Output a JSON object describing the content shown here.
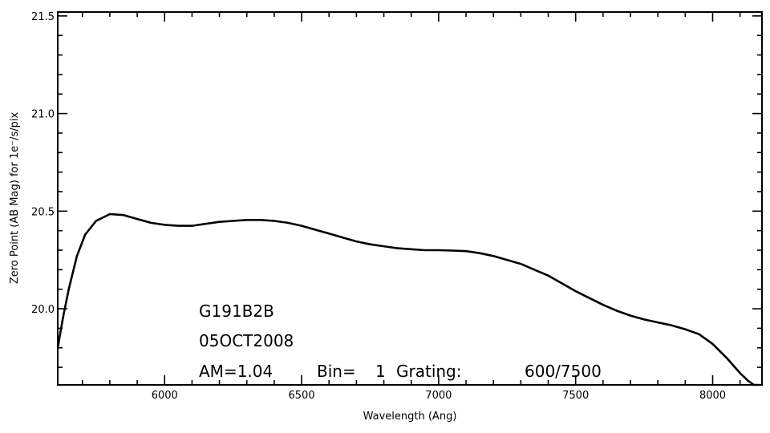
{
  "chart_data": {
    "type": "line",
    "xlabel": "Wavelength (Ang)",
    "ylabel": "Zero Point (AB Mag) for 1e⁻/s/pix",
    "xlim": [
      5610,
      8180
    ],
    "ylim": [
      19.61,
      21.52
    ],
    "x_ticks": [
      6000,
      6500,
      7000,
      7500,
      8000
    ],
    "x_tick_labels": [
      "6000",
      "6500",
      "7000",
      "7500",
      "8000"
    ],
    "y_ticks": [
      20.0,
      20.5,
      21.0,
      21.5
    ],
    "y_tick_labels": [
      "20.0",
      "20.5",
      "21.0",
      "21.5"
    ],
    "grid": false,
    "series": [
      {
        "x": [
          5610,
          5630,
          5650,
          5680,
          5710,
          5750,
          5800,
          5850,
          5900,
          5950,
          6000,
          6050,
          6100,
          6150,
          6200,
          6250,
          6300,
          6350,
          6400,
          6450,
          6500,
          6550,
          6600,
          6650,
          6700,
          6750,
          6800,
          6850,
          6900,
          6950,
          7000,
          7050,
          7100,
          7150,
          7200,
          7250,
          7300,
          7350,
          7400,
          7450,
          7500,
          7550,
          7600,
          7650,
          7700,
          7750,
          7800,
          7850,
          7900,
          7950,
          8000,
          8050,
          8100,
          8130,
          8150,
          8170
        ],
        "y": [
          19.8,
          19.96,
          20.1,
          20.27,
          20.38,
          20.45,
          20.485,
          20.48,
          20.46,
          20.44,
          20.43,
          20.425,
          20.425,
          20.435,
          20.445,
          20.45,
          20.455,
          20.455,
          20.45,
          20.44,
          20.425,
          20.405,
          20.385,
          20.365,
          20.345,
          20.33,
          20.32,
          20.31,
          20.305,
          20.3,
          20.3,
          20.298,
          20.295,
          20.285,
          20.27,
          20.25,
          20.23,
          20.2,
          20.17,
          20.13,
          20.09,
          20.055,
          20.02,
          19.99,
          19.965,
          19.945,
          19.93,
          19.915,
          19.895,
          19.87,
          19.82,
          19.75,
          19.67,
          19.63,
          19.61,
          19.6
        ]
      }
    ],
    "annotations": [
      "G191B2B",
      "05OCT2008",
      "AM=1.04",
      "Bin=",
      "1",
      "Grating:",
      "600/7500"
    ]
  }
}
